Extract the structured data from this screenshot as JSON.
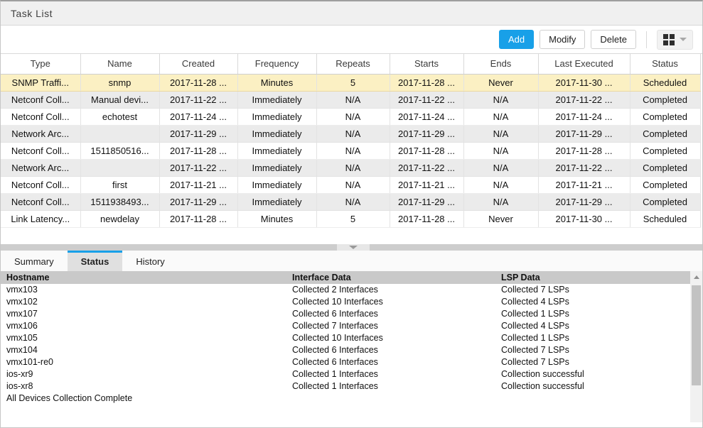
{
  "window": {
    "title": "Task List"
  },
  "toolbar": {
    "add_label": "Add",
    "modify_label": "Modify",
    "delete_label": "Delete"
  },
  "colors": {
    "accent_blue": "#18a0e8",
    "selected_row": "#fbf0c3",
    "alt_row": "#ebebeb",
    "panel_header_gray": "#c9c9c9"
  },
  "task_grid": {
    "columns": [
      "Type",
      "Name",
      "Created",
      "Frequency",
      "Repeats",
      "Starts",
      "Ends",
      "Last Executed",
      "Status"
    ],
    "selected_row_index": 0,
    "rows": [
      [
        "SNMP Traffi...",
        "snmp",
        "2017-11-28 ...",
        "Minutes",
        "5",
        "2017-11-28 ...",
        "Never",
        "2017-11-30 ...",
        "Scheduled"
      ],
      [
        "Netconf Coll...",
        "Manual devi...",
        "2017-11-22 ...",
        "Immediately",
        "N/A",
        "2017-11-22 ...",
        "N/A",
        "2017-11-22 ...",
        "Completed"
      ],
      [
        "Netconf Coll...",
        "echotest",
        "2017-11-24 ...",
        "Immediately",
        "N/A",
        "2017-11-24 ...",
        "N/A",
        "2017-11-24 ...",
        "Completed"
      ],
      [
        "Network Arc...",
        "",
        "2017-11-29 ...",
        "Immediately",
        "N/A",
        "2017-11-29 ...",
        "N/A",
        "2017-11-29 ...",
        "Completed"
      ],
      [
        "Netconf Coll...",
        "1511850516...",
        "2017-11-28 ...",
        "Immediately",
        "N/A",
        "2017-11-28 ...",
        "N/A",
        "2017-11-28 ...",
        "Completed"
      ],
      [
        "Network Arc...",
        "",
        "2017-11-22 ...",
        "Immediately",
        "N/A",
        "2017-11-22 ...",
        "N/A",
        "2017-11-22 ...",
        "Completed"
      ],
      [
        "Netconf Coll...",
        "first",
        "2017-11-21 ...",
        "Immediately",
        "N/A",
        "2017-11-21 ...",
        "N/A",
        "2017-11-21 ...",
        "Completed"
      ],
      [
        "Netconf Coll...",
        "1511938493...",
        "2017-11-29 ...",
        "Immediately",
        "N/A",
        "2017-11-29 ...",
        "N/A",
        "2017-11-29 ...",
        "Completed"
      ],
      [
        "Link Latency...",
        "newdelay",
        "2017-11-28 ...",
        "Minutes",
        "5",
        "2017-11-28 ...",
        "Never",
        "2017-11-30 ...",
        "Scheduled"
      ]
    ]
  },
  "bottom_panel": {
    "tabs": [
      {
        "label": "Summary",
        "active": false
      },
      {
        "label": "Status",
        "active": true
      },
      {
        "label": "History",
        "active": false
      }
    ],
    "columns": [
      "Hostname",
      "Interface Data",
      "LSP Data"
    ],
    "rows": [
      [
        "vmx103",
        "Collected 2 Interfaces",
        "Collected 7 LSPs"
      ],
      [
        "vmx102",
        "Collected 10 Interfaces",
        "Collected 4 LSPs"
      ],
      [
        "vmx107",
        "Collected 6 Interfaces",
        "Collected 1 LSPs"
      ],
      [
        "vmx106",
        "Collected 7 Interfaces",
        "Collected 4 LSPs"
      ],
      [
        "vmx105",
        "Collected 10 Interfaces",
        "Collected 1 LSPs"
      ],
      [
        "vmx104",
        "Collected 6 Interfaces",
        "Collected 7 LSPs"
      ],
      [
        "vmx101-re0",
        "Collected 6 Interfaces",
        "Collected 7 LSPs"
      ],
      [
        "ios-xr9",
        "Collected 1 Interfaces",
        "Collection successful"
      ],
      [
        "ios-xr8",
        "Collected 1 Interfaces",
        "Collection successful"
      ]
    ],
    "footer": "All Devices Collection Complete"
  }
}
